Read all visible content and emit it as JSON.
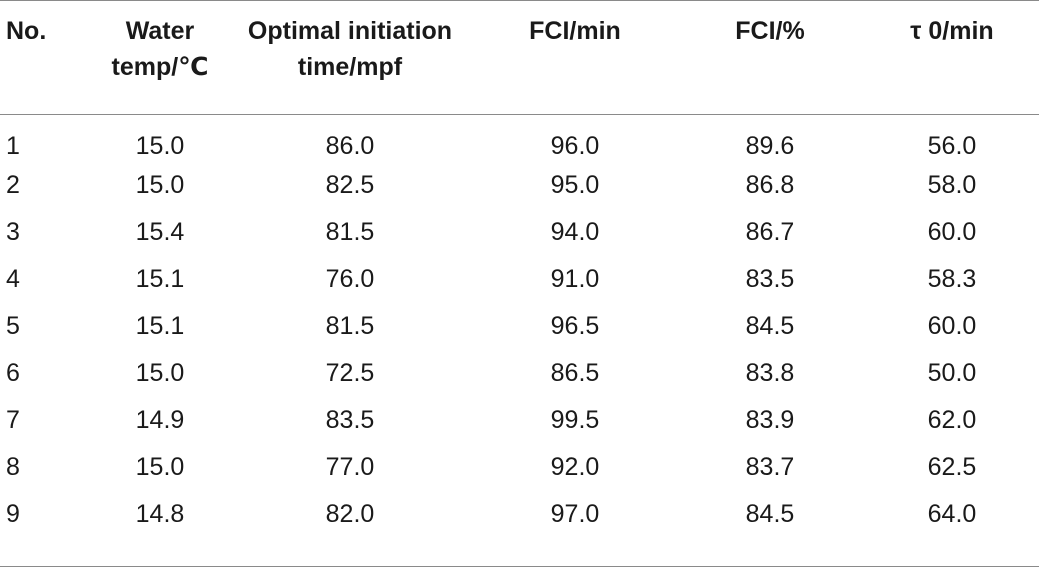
{
  "table": {
    "columns": [
      [
        "No."
      ],
      [
        "Water",
        "temp/℃"
      ],
      [
        "Optimal initiation",
        "time/mpf"
      ],
      [
        "FCI/min"
      ],
      [
        "FCI/%"
      ],
      [
        "τ 0/min"
      ]
    ],
    "rows": [
      [
        "1",
        "15.0",
        "86.0",
        "96.0",
        "89.6",
        "56.0"
      ],
      [
        "2",
        "15.0",
        "82.5",
        "95.0",
        "86.8",
        "58.0"
      ],
      [
        "3",
        "15.4",
        "81.5",
        "94.0",
        "86.7",
        "60.0"
      ],
      [
        "4",
        "15.1",
        "76.0",
        "91.0",
        "83.5",
        "58.3"
      ],
      [
        "5",
        "15.1",
        "81.5",
        "96.5",
        "84.5",
        "60.0"
      ],
      [
        "6",
        "15.0",
        "72.5",
        "86.5",
        "83.8",
        "50.0"
      ],
      [
        "7",
        "14.9",
        "83.5",
        "99.5",
        "83.9",
        "62.0"
      ],
      [
        "8",
        "15.0",
        "77.0",
        "92.0",
        "83.7",
        "62.5"
      ],
      [
        "9",
        "14.8",
        "82.0",
        "97.0",
        "84.5",
        "64.0"
      ]
    ]
  }
}
